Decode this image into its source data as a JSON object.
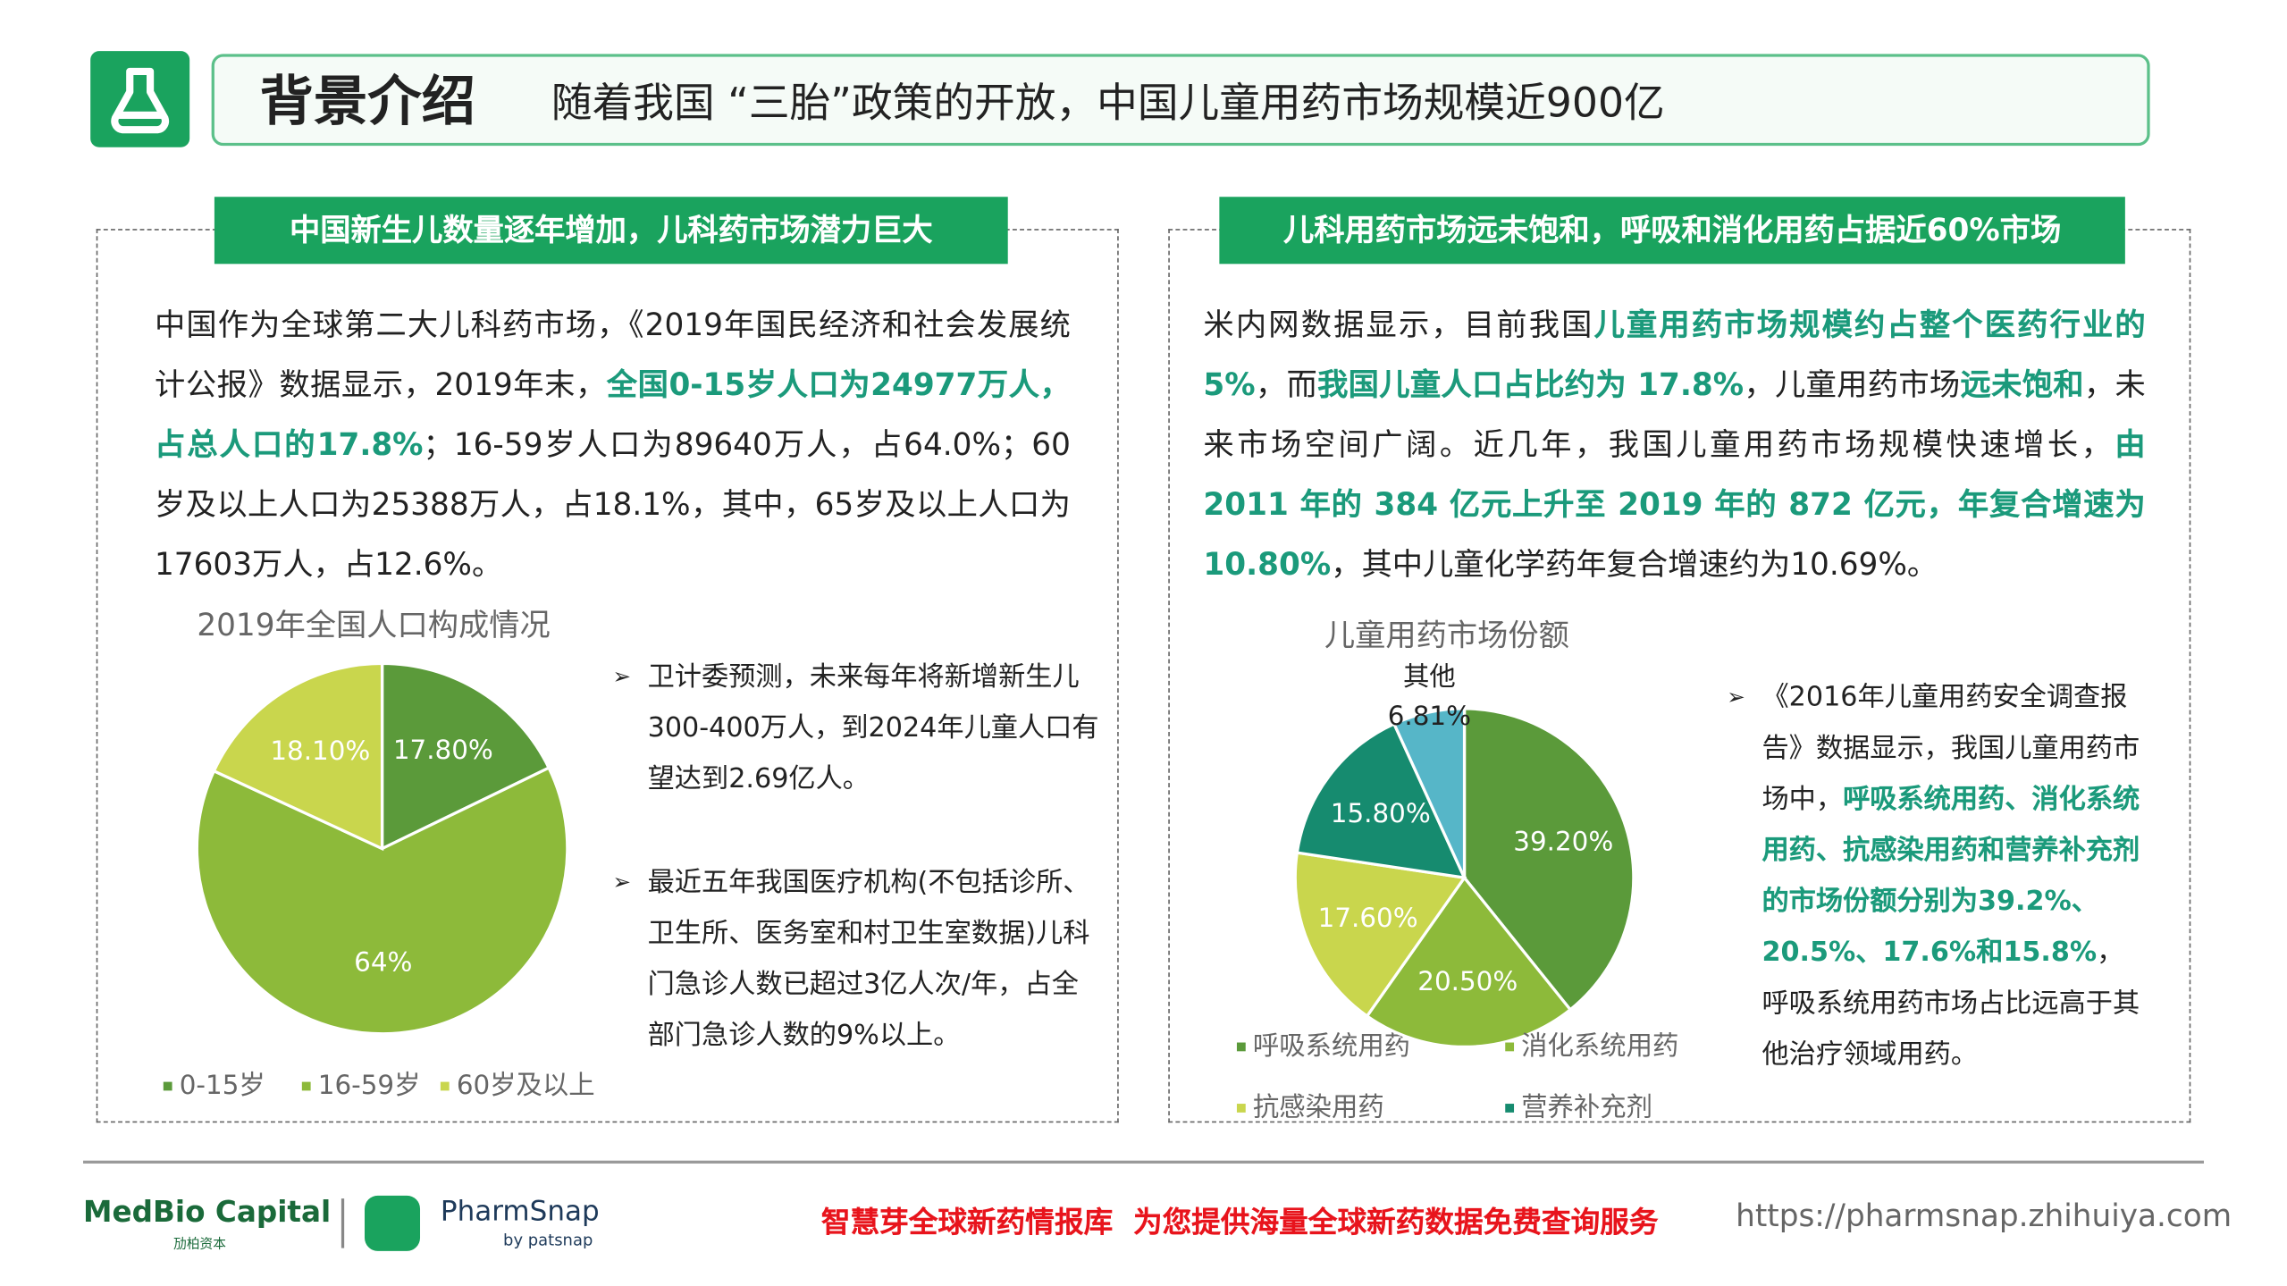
{
  "header": {
    "title": "背景介绍",
    "subtitle": "随着我国 “三胎”政策的开放，中国儿童用药市场规模近900亿"
  },
  "left": {
    "heading": "中国新生儿数量逐年增加，儿科药市场潜力巨大",
    "paragraph": [
      {
        "text": "中国作为全球第二大儿科药市场，《2019年国民经济和社会发展统计公报》数据显示，2019年末，"
      },
      {
        "text": "全国0-15岁人口为24977万人，占总人口的17.8%",
        "emphasis": true
      },
      {
        "text": "；16-59岁人口为89640万人，占64.0%；60岁及以上人口为25388万人，占18.1%，其中，65岁及以上人口为17603万人，占12.6%。"
      }
    ],
    "notes": [
      [
        {
          "text": "卫计委预测，未来每年将新增新生儿300-400万人，到2024年儿童人口有望达到2.69亿人。"
        }
      ],
      [
        {
          "text": "最近五年我国医疗机构(不包括诊所、卫生所、医务室和村卫生室数据)儿科门急诊人数已超过3亿人次/年，占全部门急诊人数的9%以上。"
        }
      ]
    ]
  },
  "right": {
    "heading": "儿科用药市场远未饱和，呼吸和消化用药占据近60%市场",
    "paragraph": [
      {
        "text": "米内网数据显示，目前我国"
      },
      {
        "text": "儿童用药市场规模约占整个医药行业的 5%",
        "emphasis": true
      },
      {
        "text": "，而"
      },
      {
        "text": "我国儿童人口占比约为 17.8%",
        "emphasis": true
      },
      {
        "text": "，儿童用药市场"
      },
      {
        "text": "远未饱和",
        "emphasis": true
      },
      {
        "text": "，未来市场空间广阔。近几年，我国儿童用药市场规模快速增长，"
      },
      {
        "text": "由 2011 年的 384 亿元上升至 2019 年的 872 亿元，年复合增速为 10.80%",
        "emphasis": true
      },
      {
        "text": "，其中儿童化学药年复合增速约为10.69%。"
      }
    ],
    "notes": [
      [
        {
          "text": "《2016年儿童用药安全调查报告》数据显示，我国儿童用药市场中，"
        },
        {
          "text": "呼吸系统用药、消化系统用药、抗感染用药和营养补充剂的市场份额分别为39.2%、20.5%、17.6%和15.8%",
          "emphasis": true
        },
        {
          "text": "，呼吸系统用药市场占比远高于其他治疗领域用药。"
        }
      ]
    ]
  },
  "chart_data": [
    {
      "type": "pie",
      "title": "2019年全国人口构成情况",
      "categories": [
        "0-15岁",
        "16-59岁",
        "60岁及以上"
      ],
      "values": [
        17.8,
        64,
        18.1
      ],
      "value_labels": [
        "17.80%",
        "64%",
        "18.10%"
      ],
      "colors": [
        "#5b9a3a",
        "#8dba3a",
        "#c9d64d"
      ]
    },
    {
      "type": "pie",
      "title": "儿童用药市场份额",
      "categories": [
        "呼吸系统用药",
        "消化系统用药",
        "抗感染用药",
        "营养补充剂",
        "其他"
      ],
      "values": [
        39.2,
        20.5,
        17.6,
        15.8,
        6.81
      ],
      "value_labels": [
        "39.20%",
        "20.50%",
        "17.60%",
        "15.80%",
        "6.81%"
      ],
      "colors": [
        "#5b9a3a",
        "#8dba3a",
        "#c9d64d",
        "#168b6f",
        "#56b6c8"
      ]
    }
  ],
  "footer": {
    "brand": "MedBio Capital",
    "brand_sub": "劢柏资本",
    "product": "PharmSnap",
    "product_sub": "by patsnap",
    "slogan": "智慧芽全球新药情报库  为您提供海量全球新药数据免费查询服务",
    "url": "https://pharmsnap.zhihuiya.com"
  }
}
